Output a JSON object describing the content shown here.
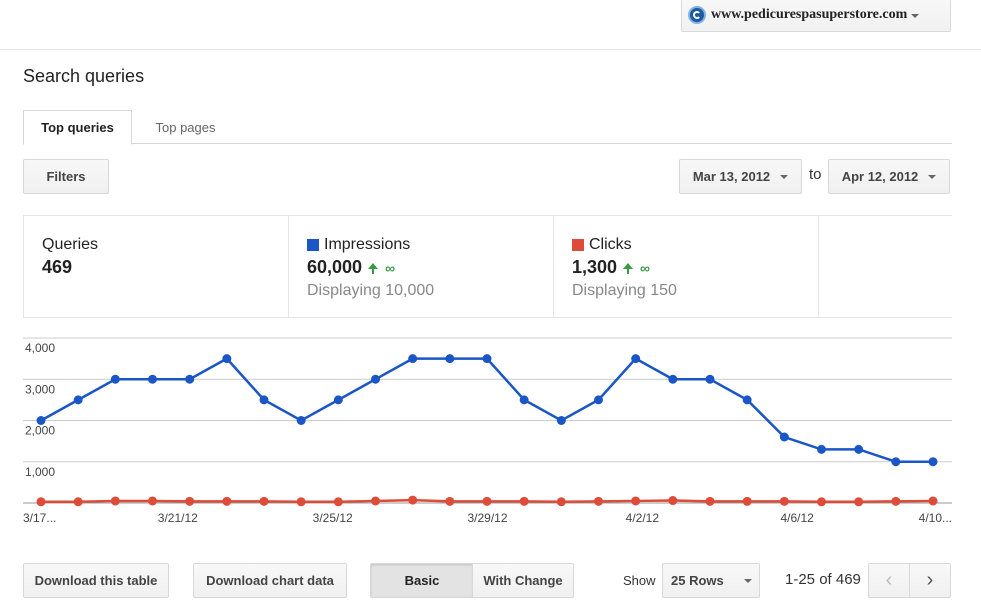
{
  "site_selector": {
    "name": "www.pedicurespasuperstore.com"
  },
  "page_title": "Search queries",
  "tabs": [
    {
      "label": "Top queries",
      "active": true
    },
    {
      "label": "Top pages",
      "active": false
    }
  ],
  "filters_label": "Filters",
  "date_range": {
    "from": "Mar 13, 2012",
    "to_label": "to",
    "to": "Apr 12, 2012"
  },
  "metrics": [
    {
      "label": "Queries",
      "value": "469",
      "change": "",
      "sub": "",
      "color": ""
    },
    {
      "label": "Impressions",
      "value": "60,000",
      "change": "∞",
      "sub": "Displaying 10,000",
      "color": "#1a56c6"
    },
    {
      "label": "Clicks",
      "value": "1,300",
      "change": "∞",
      "sub": "Displaying 150",
      "color": "#dd4b39"
    }
  ],
  "chart_data": {
    "type": "line",
    "x": [
      "3/17",
      "3/18",
      "3/19",
      "3/20",
      "3/21",
      "3/22",
      "3/23",
      "3/24",
      "3/25",
      "3/26",
      "3/27",
      "3/28",
      "3/29",
      "3/30",
      "3/31",
      "4/1",
      "4/2",
      "4/3",
      "4/4",
      "4/5",
      "4/6",
      "4/7",
      "4/8",
      "4/9",
      "4/10"
    ],
    "x_tick_labels": [
      "3/17...",
      "3/21/12",
      "3/25/12",
      "3/29/12",
      "4/2/12",
      "4/6/12",
      "4/10..."
    ],
    "series": [
      {
        "name": "Impressions",
        "color": "#1a56c6",
        "values": [
          2000,
          2500,
          3000,
          3000,
          3000,
          3500,
          2500,
          2000,
          2500,
          3000,
          3500,
          3500,
          3500,
          2500,
          2000,
          2500,
          3500,
          3000,
          3000,
          2500,
          1600,
          1300,
          1300,
          1000,
          1000
        ]
      },
      {
        "name": "Clicks",
        "color": "#dd4b39",
        "values": [
          30,
          30,
          50,
          50,
          40,
          40,
          40,
          30,
          30,
          50,
          70,
          40,
          40,
          40,
          30,
          40,
          50,
          60,
          40,
          40,
          40,
          30,
          30,
          40,
          50
        ]
      }
    ],
    "y_ticks": [
      "1,000",
      "2,000",
      "3,000",
      "4,000"
    ],
    "ylim": [
      0,
      4000
    ],
    "grid": true
  },
  "bottom_bar": {
    "download_table": "Download this table",
    "download_chart": "Download chart data",
    "basic": "Basic",
    "with_change": "With Change",
    "show_label": "Show",
    "rows_value": "25 Rows",
    "range_text": "1-25 of 469",
    "prev_icon": "‹",
    "next_icon": "›"
  }
}
